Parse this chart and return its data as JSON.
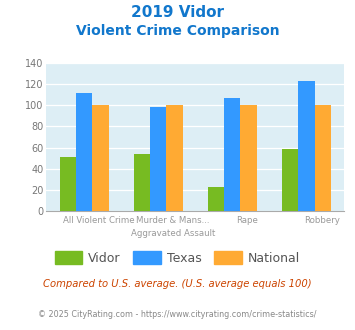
{
  "title_line1": "2019 Vidor",
  "title_line2": "Violent Crime Comparison",
  "cat_labels_top": [
    "",
    "Murder & Mans...",
    "",
    ""
  ],
  "cat_labels_bot": [
    "All Violent Crime",
    "Aggravated Assault",
    "Rape",
    "Robbery"
  ],
  "vidor": [
    51,
    54,
    23,
    59
  ],
  "texas": [
    111,
    98,
    107,
    123
  ],
  "national": [
    100,
    100,
    100,
    100
  ],
  "vidor_color": "#77bb22",
  "texas_color": "#3399ff",
  "national_color": "#ffaa33",
  "title_color": "#1177cc",
  "plot_bg": "#ddeef5",
  "ylim": [
    0,
    140
  ],
  "yticks": [
    0,
    20,
    40,
    60,
    80,
    100,
    120,
    140
  ],
  "footer_text": "Compared to U.S. average. (U.S. average equals 100)",
  "footer_color": "#cc4400",
  "credit_text": "© 2025 CityRating.com - https://www.cityrating.com/crime-statistics/",
  "credit_color": "#888888",
  "legend_labels": [
    "Vidor",
    "Texas",
    "National"
  ]
}
